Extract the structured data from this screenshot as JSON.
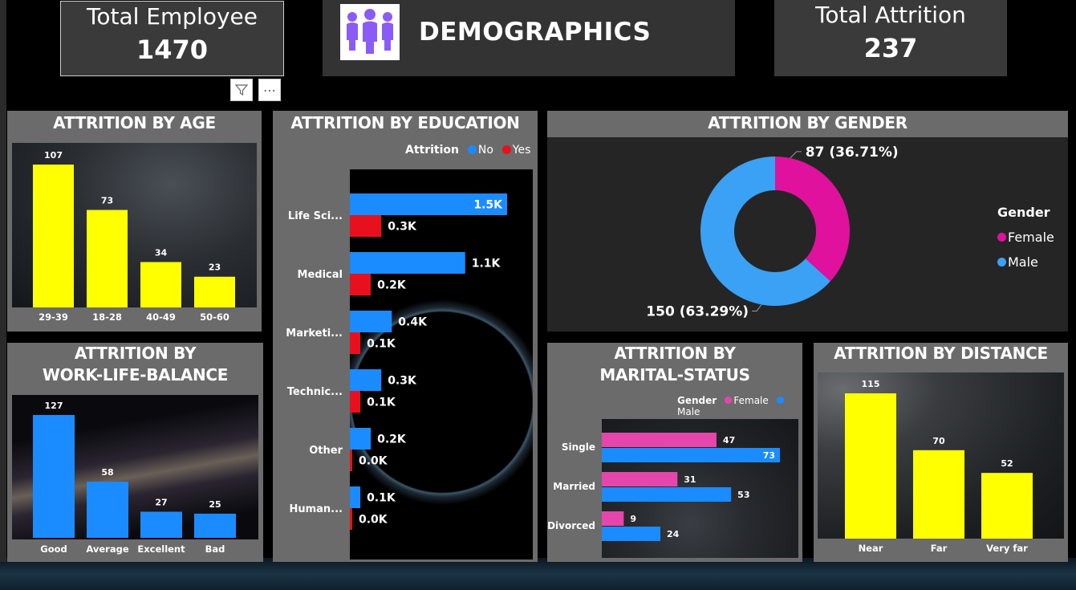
{
  "header": {
    "total_employee": {
      "label": "Total Employee",
      "value": "1470"
    },
    "title": "DEMOGRAPHICS",
    "total_attrition": {
      "label": "Total Attrition",
      "value": "237"
    },
    "more_label": "⋯"
  },
  "panels": {
    "age": {
      "title": "ATTRITION BY AGE"
    },
    "education": {
      "title": "ATTRITION BY EDUCATION",
      "legend_title": "Attrition",
      "legend_no": "No",
      "legend_yes": "Yes"
    },
    "gender": {
      "title": "ATTRITION BY GENDER",
      "legend_title": "Gender",
      "legend_female": "Female",
      "legend_male": "Male"
    },
    "wlb": {
      "title_line1": "ATTRITION BY",
      "title_line2": "WORK-LIFE-BALANCE"
    },
    "marital": {
      "title_line1": "ATTRITION BY",
      "title_line2": "MARITAL-STATUS",
      "legend_title": "Gender",
      "legend_female": "Female",
      "legend_male": "Male"
    },
    "distance": {
      "title": "ATTRITION BY DISTANCE"
    }
  },
  "colors": {
    "yellow": "#ffff00",
    "blue": "#1a8cff",
    "red": "#e8101c",
    "pink": "#e0119d",
    "male_light": "#3ba1f5",
    "panel": "#6b6b6b",
    "marital_pink": "#e546ab"
  },
  "chart_data": [
    {
      "id": "age",
      "type": "bar",
      "title": "ATTRITION BY AGE",
      "categories": [
        "29-39",
        "18-28",
        "40-49",
        "50-60"
      ],
      "values": [
        107,
        73,
        34,
        23
      ],
      "labels": [
        "107",
        "73",
        "34",
        "23"
      ]
    },
    {
      "id": "education",
      "type": "bar",
      "orientation": "horizontal",
      "title": "ATTRITION BY EDUCATION",
      "categories": [
        "Life Sci...",
        "Medical",
        "Marketi...",
        "Technic...",
        "Other",
        "Human..."
      ],
      "series": [
        {
          "name": "No",
          "values": [
            1.5,
            1.1,
            0.4,
            0.3,
            0.2,
            0.1
          ],
          "labels": [
            "1.5K",
            "1.1K",
            "0.4K",
            "0.3K",
            "0.2K",
            "0.1K"
          ]
        },
        {
          "name": "Yes",
          "values": [
            0.3,
            0.2,
            0.1,
            0.1,
            0.0,
            0.0
          ],
          "labels": [
            "0.3K",
            "0.2K",
            "0.1K",
            "0.1K",
            "0.0K",
            "0.0K"
          ]
        }
      ]
    },
    {
      "id": "gender",
      "type": "pie",
      "style": "donut",
      "title": "ATTRITION BY GENDER",
      "categories": [
        "Female",
        "Male"
      ],
      "values": [
        87,
        150
      ],
      "labels": [
        "87 (36.71%)",
        "150 (63.29%)"
      ]
    },
    {
      "id": "wlb",
      "type": "bar",
      "title": "ATTRITION BY WORK-LIFE-BALANCE",
      "categories": [
        "Good",
        "Average",
        "Excellent",
        "Bad"
      ],
      "values": [
        127,
        58,
        27,
        25
      ],
      "labels": [
        "127",
        "58",
        "27",
        "25"
      ]
    },
    {
      "id": "marital",
      "type": "bar",
      "orientation": "horizontal",
      "title": "ATTRITION BY MARITAL-STATUS",
      "categories": [
        "Single",
        "Married",
        "Divorced"
      ],
      "series": [
        {
          "name": "Female",
          "values": [
            47,
            31,
            9
          ],
          "labels": [
            "47",
            "31",
            "9"
          ]
        },
        {
          "name": "Male",
          "values": [
            73,
            53,
            24
          ],
          "labels": [
            "73",
            "53",
            "24"
          ]
        }
      ]
    },
    {
      "id": "distance",
      "type": "bar",
      "title": "ATTRITION BY DISTANCE",
      "categories": [
        "Near",
        "Far",
        "Very far"
      ],
      "values": [
        115,
        70,
        52
      ],
      "labels": [
        "115",
        "70",
        "52"
      ]
    }
  ]
}
